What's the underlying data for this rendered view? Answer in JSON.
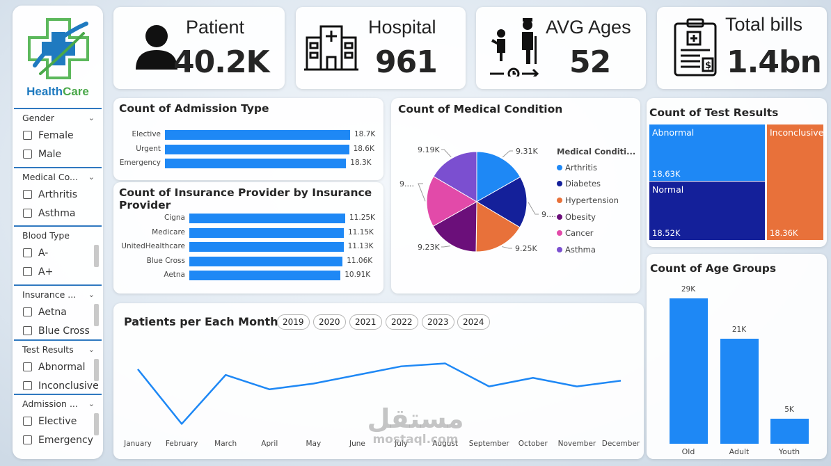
{
  "brand": {
    "name_part1": "Health",
    "name_part2": "Care"
  },
  "filters": [
    {
      "title": "Gender",
      "options": [
        "Female",
        "Male"
      ]
    },
    {
      "title": "Medical Co...",
      "options": [
        "Arthritis",
        "Asthma"
      ]
    },
    {
      "title": "Blood Type",
      "options": [
        "A-",
        "A+"
      ]
    },
    {
      "title": "Insurance ...",
      "options": [
        "Aetna",
        "Blue Cross"
      ]
    },
    {
      "title": "Test Results",
      "options": [
        "Abnormal",
        "Inconclusive"
      ]
    },
    {
      "title": "Admission ...",
      "options": [
        "Elective",
        "Emergency"
      ]
    }
  ],
  "kpis": {
    "patient": {
      "label": "Patient",
      "value": "40.2K",
      "icon": "person-icon"
    },
    "hospital": {
      "label": "Hospital",
      "value": "961",
      "icon": "hospital-building-icon"
    },
    "ages": {
      "label": "AVG Ages",
      "value": "52",
      "icon": "age-progression-icon"
    },
    "bills": {
      "label": "Total bills",
      "value": "1.4bn",
      "icon": "medical-bill-icon"
    }
  },
  "admission": {
    "title": "Count of Admission Type",
    "rows": [
      {
        "label": "Elective",
        "value": 18.7,
        "display": "18.7K"
      },
      {
        "label": "Urgent",
        "value": 18.6,
        "display": "18.6K"
      },
      {
        "label": "Emergency",
        "value": 18.3,
        "display": "18.3K"
      }
    ]
  },
  "insurance": {
    "title": "Count of Insurance Provider by Insurance Provider",
    "rows": [
      {
        "label": "Cigna",
        "value": 11.25,
        "display": "11.25K"
      },
      {
        "label": "Medicare",
        "value": 11.15,
        "display": "11.15K"
      },
      {
        "label": "UnitedHealthcare",
        "value": 11.13,
        "display": "11.13K"
      },
      {
        "label": "Blue Cross",
        "value": 11.06,
        "display": "11.06K"
      },
      {
        "label": "Aetna",
        "value": 10.91,
        "display": "10.91K"
      }
    ]
  },
  "medical": {
    "title": "Count of Medical Condition",
    "legend_title": "Medical Conditi...",
    "slices": [
      {
        "name": "Arthritis",
        "value": 9.31,
        "label": "9.31K",
        "color": "#1e88f5"
      },
      {
        "name": "Diabetes",
        "value": 9.3,
        "label": "9....",
        "color": "#14209a"
      },
      {
        "name": "Hypertension",
        "value": 9.25,
        "label": "9.25K",
        "color": "#e8713a"
      },
      {
        "name": "Obesity",
        "value": 9.23,
        "label": "9.23K",
        "color": "#6b0f7a"
      },
      {
        "name": "Cancer",
        "value": 9.2,
        "label": "9....",
        "color": "#e24aa9"
      },
      {
        "name": "Asthma",
        "value": 9.19,
        "label": "9.19K",
        "color": "#7b4fd0"
      }
    ]
  },
  "monthly": {
    "title": "Patients per Each Month in",
    "years": [
      "2019",
      "2020",
      "2021",
      "2022",
      "2023",
      "2024"
    ],
    "months": [
      "January",
      "February",
      "March",
      "April",
      "May",
      "June",
      "July",
      "August",
      "September",
      "October",
      "November",
      "December"
    ],
    "values": [
      3380,
      3190,
      3360,
      3310,
      3330,
      3360,
      3390,
      3400,
      3320,
      3350,
      3320,
      3340
    ],
    "ylim": [
      3150,
      3440
    ]
  },
  "test_results": {
    "title": "Count of Test Results",
    "cells": [
      {
        "name": "Abnormal",
        "value": "18.63K",
        "color": "#1e88f5"
      },
      {
        "name": "Normal",
        "value": "18.52K",
        "color": "#14209a"
      },
      {
        "name": "Inconclusive",
        "value": "18.36K",
        "color": "#e8713a"
      }
    ]
  },
  "age_groups": {
    "title": "Count of Age Groups",
    "categories": [
      "Old",
      "Adult",
      "Youth"
    ],
    "values": [
      29,
      21,
      5
    ],
    "labels": [
      "29K",
      "21K",
      "5K"
    ],
    "ylim": [
      0,
      30
    ]
  },
  "chart_data": [
    {
      "type": "bar",
      "title": "Count of Admission Type",
      "categories": [
        "Elective",
        "Urgent",
        "Emergency"
      ],
      "values": [
        18.7,
        18.6,
        18.3
      ]
    },
    {
      "type": "bar",
      "title": "Count of Insurance Provider by Insurance Provider",
      "categories": [
        "Cigna",
        "Medicare",
        "UnitedHealthcare",
        "Blue Cross",
        "Aetna"
      ],
      "values": [
        11.25,
        11.15,
        11.13,
        11.06,
        10.91
      ]
    },
    {
      "type": "pie",
      "title": "Count of Medical Condition",
      "categories": [
        "Arthritis",
        "Diabetes",
        "Hypertension",
        "Obesity",
        "Cancer",
        "Asthma"
      ],
      "values": [
        9.31,
        9.3,
        9.25,
        9.23,
        9.2,
        9.19
      ]
    },
    {
      "type": "line",
      "title": "Patients per Each Month in",
      "x": [
        "January",
        "February",
        "March",
        "April",
        "May",
        "June",
        "July",
        "August",
        "September",
        "October",
        "November",
        "December"
      ],
      "values": [
        3380,
        3190,
        3360,
        3310,
        3330,
        3360,
        3390,
        3400,
        3320,
        3350,
        3320,
        3340
      ]
    },
    {
      "type": "heatmap",
      "title": "Count of Test Results",
      "categories": [
        "Abnormal",
        "Normal",
        "Inconclusive"
      ],
      "values": [
        18.63,
        18.52,
        18.36
      ]
    },
    {
      "type": "bar",
      "title": "Count of Age Groups",
      "categories": [
        "Old",
        "Adult",
        "Youth"
      ],
      "values": [
        29,
        21,
        5
      ],
      "ylim": [
        0,
        30
      ]
    }
  ],
  "watermark": {
    "arabic": "مستقل",
    "latin": "mostaql.com"
  }
}
